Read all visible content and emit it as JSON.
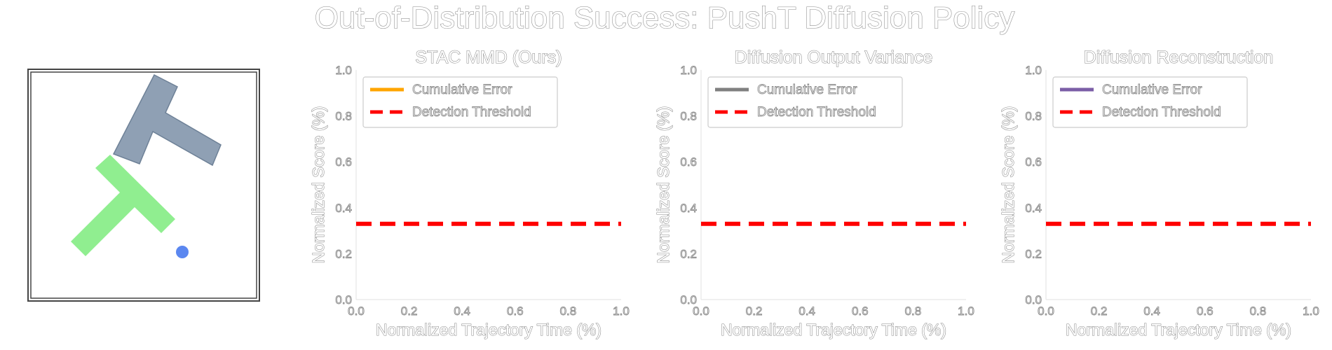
{
  "figure_title": "Out-of-Distribution Success: PushT Diffusion Policy",
  "scene": {
    "colors": {
      "block": "#8fa0b4",
      "block_edge": "#6e8197",
      "target": "#90ee90",
      "agent": "#5b87f0"
    }
  },
  "chart_data": [
    {
      "type": "line",
      "title": "STAC MMD (Ours)",
      "xlabel": "Normalized Trajectory Time (%)",
      "ylabel": "Normalized Score (%)",
      "xlim": [
        0.0,
        1.0
      ],
      "ylim": [
        0.0,
        1.0
      ],
      "x_ticks": [
        "0.0",
        "0.2",
        "0.4",
        "0.6",
        "0.8",
        "1.0"
      ],
      "y_ticks": [
        "0.0",
        "0.2",
        "0.4",
        "0.6",
        "0.8",
        "1.0"
      ],
      "grid": false,
      "legend_position": "upper-left",
      "series": [
        {
          "name": "Cumulative Error",
          "color": "#ffa500",
          "style": "solid",
          "values": []
        },
        {
          "name": "Detection Threshold",
          "color": "#ff0000",
          "style": "dashed",
          "x": [
            0.0,
            1.0
          ],
          "values": [
            0.33,
            0.33
          ]
        }
      ]
    },
    {
      "type": "line",
      "title": "Diffusion Output Variance",
      "xlabel": "Normalized Trajectory Time (%)",
      "ylabel": "Normalized Score (%)",
      "xlim": [
        0.0,
        1.0
      ],
      "ylim": [
        0.0,
        1.0
      ],
      "x_ticks": [
        "0.0",
        "0.2",
        "0.4",
        "0.6",
        "0.8",
        "1.0"
      ],
      "y_ticks": [
        "0.0",
        "0.2",
        "0.4",
        "0.6",
        "0.8",
        "1.0"
      ],
      "grid": false,
      "legend_position": "upper-left",
      "series": [
        {
          "name": "Cumulative Error",
          "color": "#808080",
          "style": "solid",
          "values": []
        },
        {
          "name": "Detection Threshold",
          "color": "#ff0000",
          "style": "dashed",
          "x": [
            0.0,
            1.0
          ],
          "values": [
            0.33,
            0.33
          ]
        }
      ]
    },
    {
      "type": "line",
      "title": "Diffusion Reconstruction",
      "xlabel": "Normalized Trajectory Time (%)",
      "ylabel": "Normalized Score (%)",
      "xlim": [
        0.0,
        1.0
      ],
      "ylim": [
        0.0,
        1.0
      ],
      "x_ticks": [
        "0.0",
        "0.2",
        "0.4",
        "0.6",
        "0.8",
        "1.0"
      ],
      "y_ticks": [
        "0.0",
        "0.2",
        "0.4",
        "0.6",
        "0.8",
        "1.0"
      ],
      "grid": false,
      "legend_position": "upper-left",
      "series": [
        {
          "name": "Cumulative Error",
          "color": "#7b5ea7",
          "style": "solid",
          "values": []
        },
        {
          "name": "Detection Threshold",
          "color": "#ff0000",
          "style": "dashed",
          "x": [
            0.0,
            1.0
          ],
          "values": [
            0.33,
            0.33
          ]
        }
      ]
    }
  ]
}
